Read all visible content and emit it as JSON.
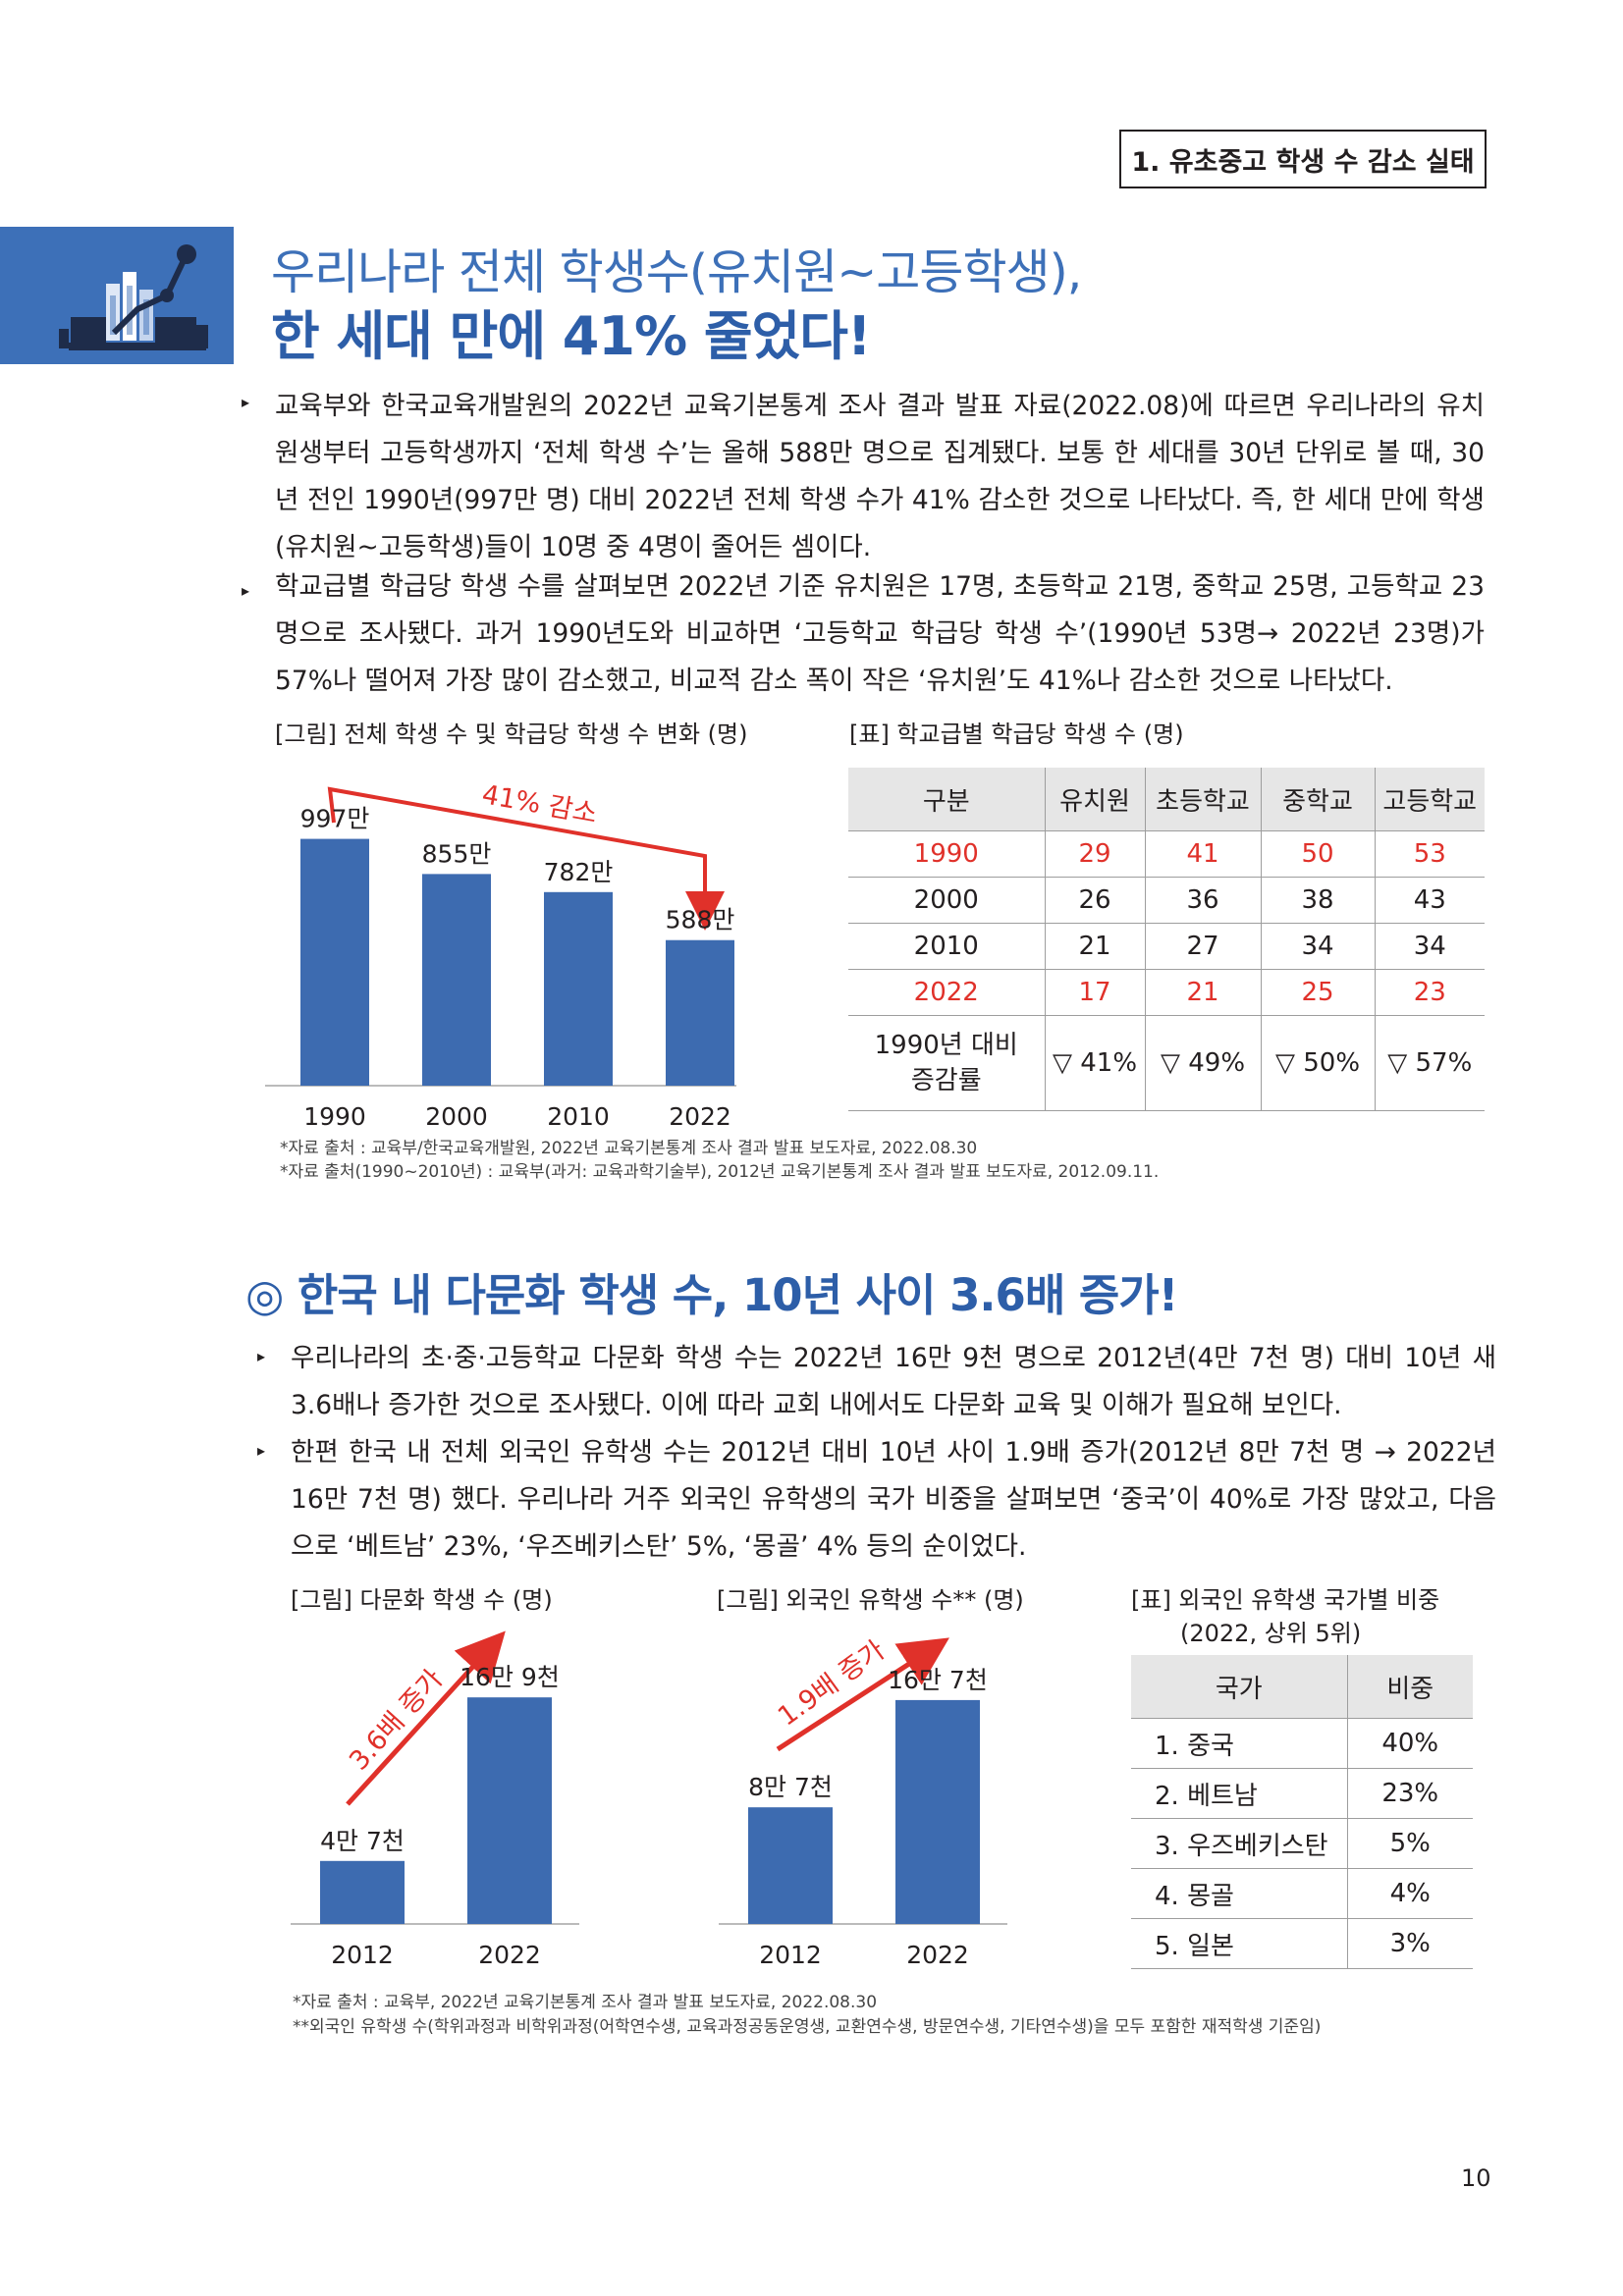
{
  "header": {
    "section_tag": "1. 유초중고 학생 수 감소 실태"
  },
  "title": {
    "line1": "우리나라 전체 학생수(유치원~고등학생),",
    "line2": "한 세대 만에 41% 줄었다!"
  },
  "section1": {
    "bullets": [
      "교육부와 한국교육개발원의 2022년 교육기본통계 조사 결과 발표 자료(2022.08)에 따르면 우리나라의 유치원생부터 고등학생까지 ‘전체 학생 수’는 올해 588만 명으로 집계됐다. 보통 한 세대를 30년 단위로 볼 때, 30년 전인 1990년(997만 명) 대비 2022년 전체 학생 수가 41% 감소한 것으로 나타났다. 즉, 한 세대 만에 학생(유치원~고등학생)들이 10명 중 4명이 줄어든 셈이다.",
      "학교급별 학급당 학생 수를 살펴보면 2022년 기준 유치원은 17명, 초등학교 21명, 중학교 25명, 고등학교 23명으로 조사됐다. 과거 1990년도와 비교하면 ‘고등학교 학급당 학생 수’(1990년 53명→ 2022년 23명)가 57%나 떨어져 가장 많이 감소했고, 비교적 감소 폭이 작은 ‘유치원’도 41%나 감소한 것으로 나타났다."
    ],
    "fig_caption": "[그림] 전체 학생 수 및 학급당 학생 수 변화 (명)",
    "table_caption": "[표] 학교급별 학급당 학생 수 (명)",
    "sources": [
      "*자료 출처 : 교육부/한국교육개발원, 2022년 교육기본통계 조사 결과 발표 보도자료, 2022.08.30",
      "*자료 출처(1990~2010년) : 교육부(과거: 교육과학기술부), 2012년 교육기본통계 조사 결과 발표 보도자료, 2012.09.11."
    ],
    "table": {
      "headers": [
        "구분",
        "유치원",
        "초등학교",
        "중학교",
        "고등학교"
      ],
      "rows": [
        [
          "1990",
          "29",
          "41",
          "50",
          "53"
        ],
        [
          "2000",
          "26",
          "36",
          "38",
          "43"
        ],
        [
          "2010",
          "21",
          "27",
          "34",
          "34"
        ],
        [
          "2022",
          "17",
          "21",
          "25",
          "23"
        ]
      ],
      "change_label_1": "1990년 대비",
      "change_label_2": "증감률",
      "change_values": [
        "▽ 41%",
        "▽ 49%",
        "▽ 50%",
        "▽ 57%"
      ]
    }
  },
  "section2": {
    "heading": "◎ 한국 내 다문화 학생 수, 10년 사이 3.6배 증가!",
    "bullets": [
      "우리나라의 초·중·고등학교 다문화 학생 수는 2022년 16만 9천 명으로 2012년(4만 7천 명) 대비 10년 새 3.6배나 증가한 것으로 조사됐다. 이에 따라 교회 내에서도 다문화 교육 및 이해가 필요해 보인다.",
      "한편 한국 내 전체 외국인 유학생 수는 2012년 대비 10년 사이 1.9배 증가(2012년 8만 7천 명 → 2022년 16만 7천 명) 했다. 우리나라 거주 외국인 유학생의 국가 비중을 살펴보면 ‘중국’이 40%로 가장 많았고, 다음으로 ‘베트남’ 23%, ‘우즈베키스탄’ 5%, ‘몽골’ 4% 등의 순이었다."
    ],
    "fig1_caption": "[그림] 다문화 학생 수 (명)",
    "fig2_caption": "[그림] 외국인 유학생 수** (명)",
    "table_caption_1": "[표] 외국인 유학생 국가별 비중",
    "table_caption_2": "(2022, 상위 5위)",
    "table": {
      "headers": [
        "국가",
        "비중"
      ],
      "rows": [
        [
          "1. 중국",
          "40%"
        ],
        [
          "2. 베트남",
          "23%"
        ],
        [
          "3. 우즈베키스탄",
          "5%"
        ],
        [
          "4. 몽골",
          "4%"
        ],
        [
          "5. 일본",
          "3%"
        ]
      ]
    },
    "sources": [
      "*자료 출처 : 교육부, 2022년 교육기본통계 조사 결과 발표 보도자료, 2022.08.30",
      "**외국인 유학생 수(학위과정과 비학위과정(어학연수생, 교육과정공동운영생, 교환연수생, 방문연수생, 기타연수생)을 모두 포함한 재적학생 기준임)"
    ]
  },
  "page_number": "10",
  "chart_data": [
    {
      "type": "bar",
      "title": "",
      "categories": [
        "1990",
        "2000",
        "2010",
        "2022"
      ],
      "values": [
        997,
        855,
        782,
        588
      ],
      "value_labels": [
        "997만",
        "855만",
        "782만",
        "588만"
      ],
      "annotation": "41% 감소",
      "color": "#3d6bb0",
      "ylim": [
        0,
        1150
      ]
    },
    {
      "type": "bar",
      "title": "",
      "categories": [
        "2012",
        "2022"
      ],
      "values": [
        47000,
        169000
      ],
      "value_labels": [
        "4만 7천",
        "16만 9천"
      ],
      "annotation": "3.6배 증가",
      "color": "#3d6bb0",
      "ylim": [
        0,
        205000
      ]
    },
    {
      "type": "bar",
      "title": "",
      "categories": [
        "2012",
        "2022"
      ],
      "values": [
        87000,
        167000
      ],
      "value_labels": [
        "8만 7천",
        "16만 7천"
      ],
      "annotation": "1.9배 증가",
      "color": "#3d6bb0",
      "ylim": [
        0,
        205000
      ]
    }
  ],
  "colors": {
    "accent": "#3d70b8",
    "bar": "#3d6bb0",
    "highlight": "#e0312a"
  }
}
